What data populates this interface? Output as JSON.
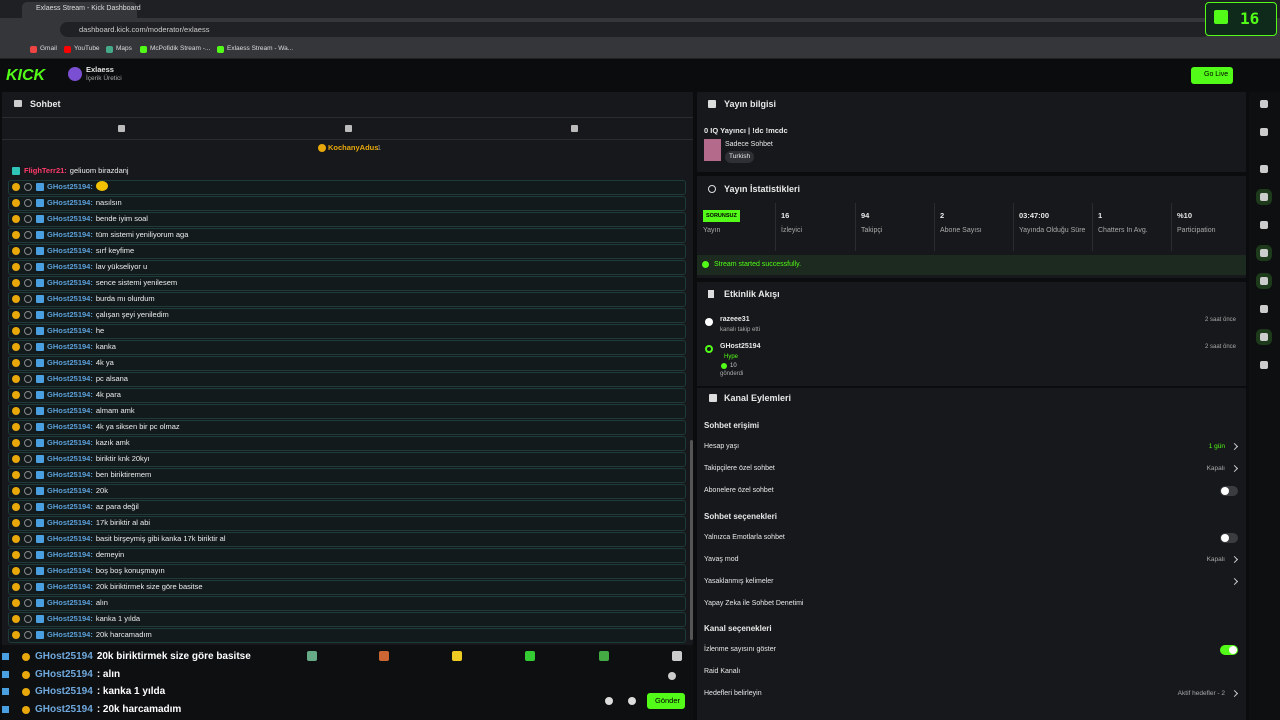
{
  "browser": {
    "tab_title": "Exlaess Stream - Kick Dashboard",
    "url": "dashboard.kick.com/moderator/exlaess",
    "bookmarks": [
      "Gmail",
      "YouTube",
      "Maps",
      "McPofidik Stream -...",
      "Exlaess Stream - Wa..."
    ],
    "badge": "16"
  },
  "header": {
    "logo": "KICK",
    "channel_name": "Exlaess",
    "channel_role": "İçerik Üretici",
    "go_live": "Go Live"
  },
  "chat": {
    "title": "Sohbet",
    "pinned_user": "KochanyAdus",
    "pinned_count": "1",
    "messages": [
      {
        "user": "FlighTerr21:",
        "text": "geliuom birazdanj"
      },
      {
        "user": "GHost25194:"
      },
      {
        "user": "GHost25194:",
        "text": "nasılsın"
      },
      {
        "user": "GHost25194:",
        "text": "bende iyim soal"
      },
      {
        "user": "GHost25194:",
        "text": "tüm sistemi yeniliyorum aga"
      },
      {
        "user": "GHost25194:",
        "text": "sırf keyfime"
      },
      {
        "user": "GHost25194:",
        "text": "lav yükseliyor u"
      },
      {
        "user": "GHost25194:",
        "text": "sence sistemi yenilesem"
      },
      {
        "user": "GHost25194:",
        "text": "burda mı olurdum"
      },
      {
        "user": "GHost25194:",
        "text": "çalışan şeyi yeniledim"
      },
      {
        "user": "GHost25194:",
        "text": "he"
      },
      {
        "user": "GHost25194:",
        "text": "kanka"
      },
      {
        "user": "GHost25194:",
        "text": "4k ya"
      },
      {
        "user": "GHost25194:",
        "text": "pc alsana"
      },
      {
        "user": "GHost25194:",
        "text": "4k para"
      },
      {
        "user": "GHost25194:",
        "text": "almam amk"
      },
      {
        "user": "GHost25194:",
        "text": "4k ya siksen bir pc olmaz"
      },
      {
        "user": "GHost25194:",
        "text": "kazık amk"
      },
      {
        "user": "GHost25194:",
        "text": "biriktir knk 20kyı"
      },
      {
        "user": "GHost25194:",
        "text": "ben biriktiremem"
      },
      {
        "user": "GHost25194:",
        "text": "20k"
      },
      {
        "user": "GHost25194:",
        "text": "az para değil"
      },
      {
        "user": "GHost25194:",
        "text": "17k biriktir al abi"
      },
      {
        "user": "GHost25194:",
        "text": "basit birşeymiş gibi kanka 17k biriktir al"
      },
      {
        "user": "GHost25194:",
        "text": "demeyin"
      },
      {
        "user": "GHost25194:",
        "text": "boş boş konuşmayın"
      },
      {
        "user": "GHost25194:",
        "text": "20k biriktirmek size göre basitse"
      },
      {
        "user": "GHost25194:",
        "text": "alın"
      },
      {
        "user": "GHost25194:",
        "text": "kanka 1 yılda"
      },
      {
        "user": "GHost25194:",
        "text": "20k harcamadım"
      }
    ],
    "overlay": [
      {
        "user": "GHost25194",
        "text": "20k biriktirmek size göre basitse"
      },
      {
        "user": "GHost25194",
        "text": ": alın"
      },
      {
        "user": "GHost25194",
        "text": ": kanka 1 yılda"
      },
      {
        "user": "GHost25194",
        "text": ": 20k harcamadım"
      }
    ],
    "send": "Gönder"
  },
  "stream_info": {
    "title": "Yayın bilgisi",
    "stream_title": "0 IQ Yayıncı | !dc !mcdc",
    "category": "Sadece Sohbet",
    "language": "Turkish"
  },
  "stats": {
    "title": "Yayın İstatistikleri",
    "items": [
      {
        "value": "SORUNSUZ",
        "label": "Yayın"
      },
      {
        "value": "16",
        "label": "İzleyici"
      },
      {
        "value": "94",
        "label": "Takipçi"
      },
      {
        "value": "2",
        "label": "Abone Sayısı"
      },
      {
        "value": "03:47:00",
        "label": "Yayında Olduğu Süre"
      },
      {
        "value": "1",
        "label": "Chatters In Avg."
      },
      {
        "value": "%10",
        "label": "Participation"
      }
    ],
    "status": "Stream started successfully."
  },
  "activity": {
    "title": "Etkinlik Akışı",
    "events": [
      {
        "user": "razeee31",
        "detail": "kanalı takip etti",
        "time": "2 saat önce"
      },
      {
        "user": "GHost25194",
        "tag": "Hype",
        "amount": "10",
        "detail": "gönderdi",
        "time": "2 saat önce"
      }
    ]
  },
  "channel_actions": {
    "title": "Kanal Eylemleri",
    "sections": [
      {
        "heading": "Sohbet erişimi",
        "rows": [
          {
            "label": "Hesap yaşı",
            "value": "1 gün"
          },
          {
            "label": "Takipçilere özel sohbet",
            "value": "Kapalı"
          },
          {
            "label": "Abonelere özel sohbet",
            "toggle": false
          }
        ]
      },
      {
        "heading": "Sohbet seçenekleri",
        "rows": [
          {
            "label": "Yalnızca Emotlarla sohbet",
            "toggle": false
          },
          {
            "label": "Yavaş mod",
            "value": "Kapalı"
          },
          {
            "label": "Yasaklanmış kelimeler"
          },
          {
            "label": "Yapay Zeka ile Sohbet Denetimi"
          }
        ]
      },
      {
        "heading": "Kanal seçenekleri",
        "rows": [
          {
            "label": "İzlenme sayısını göster",
            "toggle": true
          },
          {
            "label": "Raid Kanalı"
          },
          {
            "label": "Hedefleri belirleyin",
            "value": "Aktif hedefler - 2"
          }
        ]
      }
    ]
  }
}
